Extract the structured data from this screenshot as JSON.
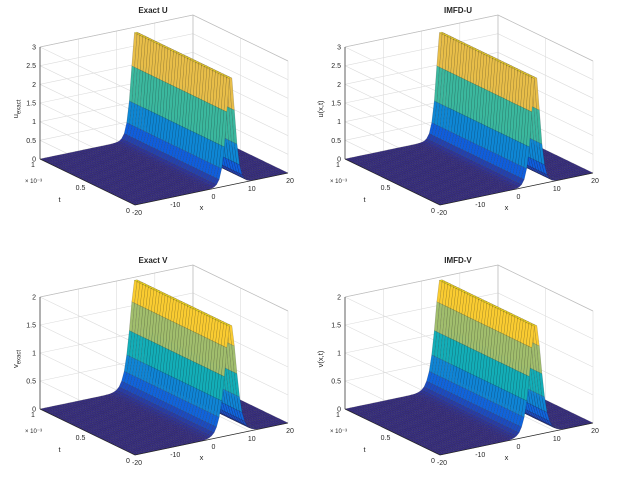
{
  "chart_data": [
    {
      "type": "surface",
      "title": "Exact U",
      "xlabel": "x",
      "ylabel": "t",
      "zlabel": "u",
      "zlabel_sub": "exact",
      "t_exponent": "× 10⁻³",
      "xlim": [
        -20,
        20
      ],
      "ylim": [
        0,
        0.001
      ],
      "zlim": [
        0,
        3
      ],
      "x_ticks": [
        "-20",
        "-10",
        "0",
        "10",
        "20"
      ],
      "y_ticks": [
        "0",
        "0.5",
        "1"
      ],
      "z_ticks": [
        "0",
        "0.5",
        "1",
        "1.5",
        "2",
        "2.5",
        "3"
      ],
      "peak": 3,
      "peak_x": 5,
      "width": 1.5,
      "colormap": "parula",
      "grid": true
    },
    {
      "type": "surface",
      "title": "IMFD-U",
      "xlabel": "x",
      "ylabel": "t",
      "zlabel": "u(x,t)",
      "zlabel_sub": "",
      "t_exponent": "× 10⁻³",
      "xlim": [
        -20,
        20
      ],
      "ylim": [
        0,
        0.001
      ],
      "zlim": [
        0,
        3
      ],
      "x_ticks": [
        "-20",
        "-10",
        "0",
        "10",
        "20"
      ],
      "y_ticks": [
        "0",
        "0.5",
        "1"
      ],
      "z_ticks": [
        "0",
        "0.5",
        "1",
        "1.5",
        "2",
        "2.5",
        "3"
      ],
      "peak": 3,
      "peak_x": 5,
      "width": 1.5,
      "colormap": "parula",
      "grid": true
    },
    {
      "type": "surface",
      "title": "Exact V",
      "xlabel": "x",
      "ylabel": "t",
      "zlabel": "v",
      "zlabel_sub": "exact",
      "t_exponent": "× 10⁻³",
      "xlim": [
        -20,
        20
      ],
      "ylim": [
        0,
        0.001
      ],
      "zlim": [
        0,
        2
      ],
      "x_ticks": [
        "-20",
        "-10",
        "0",
        "10",
        "20"
      ],
      "y_ticks": [
        "0",
        "0.5",
        "1"
      ],
      "z_ticks": [
        "0",
        "0.5",
        "1",
        "1.5",
        "2"
      ],
      "peak": 2,
      "peak_x": 5,
      "width": 2,
      "colormap": "parula",
      "grid": true
    },
    {
      "type": "surface",
      "title": "IMFD-V",
      "xlabel": "x",
      "ylabel": "t",
      "zlabel": "v(x,t)",
      "zlabel_sub": "",
      "t_exponent": "× 10⁻³",
      "xlim": [
        -20,
        20
      ],
      "ylim": [
        0,
        0.001
      ],
      "zlim": [
        0,
        2
      ],
      "x_ticks": [
        "-20",
        "-10",
        "0",
        "10",
        "20"
      ],
      "y_ticks": [
        "0",
        "0.5",
        "1"
      ],
      "z_ticks": [
        "0",
        "0.5",
        "1",
        "1.5",
        "2"
      ],
      "peak": 2,
      "peak_x": 5,
      "width": 2,
      "colormap": "parula",
      "grid": true
    }
  ]
}
